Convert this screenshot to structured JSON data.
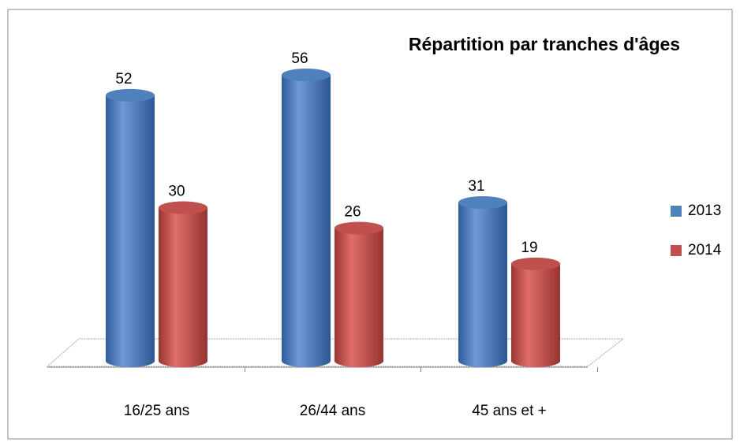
{
  "chart_data": {
    "type": "bar",
    "title": "Répartition par tranches d'âges",
    "categories": [
      "16/25 ans",
      "26/44 ans",
      "45 ans et +"
    ],
    "series": [
      {
        "name": "2013",
        "color": "#4f81bd",
        "values": [
          52,
          56,
          31
        ]
      },
      {
        "name": "2014",
        "color": "#c0504d",
        "values": [
          30,
          26,
          19
        ]
      }
    ],
    "legend": "right",
    "grid": false
  }
}
